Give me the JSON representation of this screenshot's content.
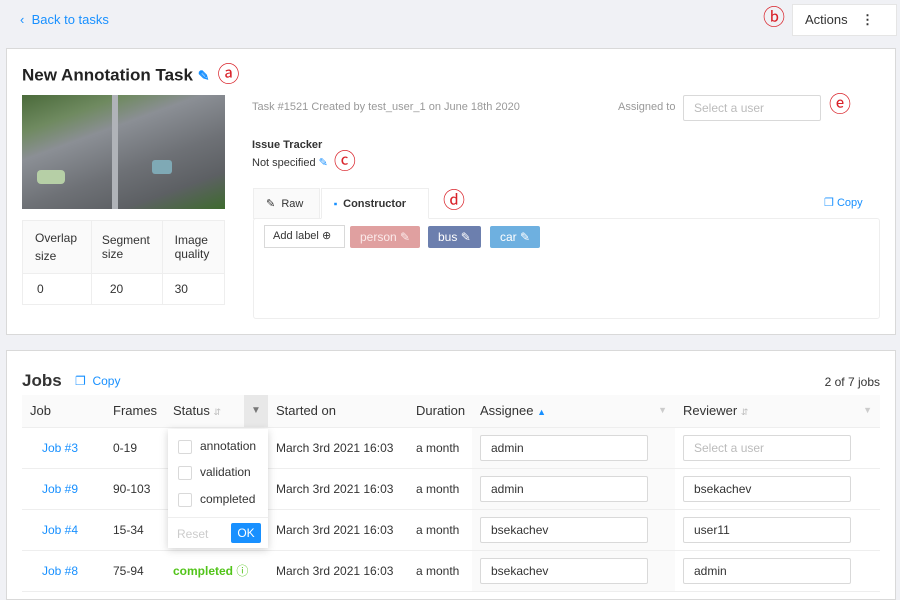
{
  "header": {
    "back_label": "Back to tasks",
    "actions_label": "Actions"
  },
  "markers": {
    "a": "ⓐ",
    "b": "ⓑ",
    "c": "ⓒ",
    "d": "ⓓ",
    "e": "ⓔ"
  },
  "task": {
    "title": "New Annotation Task",
    "meta": "Task #1521 Created by test_user_1 on June 18th 2020",
    "assigned_label": "Assigned to",
    "assigned_placeholder": "Select a user",
    "issue_tracker_label": "Issue Tracker",
    "issue_tracker_value": "Not specified",
    "params": {
      "headers": [
        "Overlap size",
        "Segment size",
        "Image quality"
      ],
      "values": [
        "0",
        "20",
        "30"
      ]
    }
  },
  "labels": {
    "tabs": [
      "Raw",
      "Constructor"
    ],
    "active_tab": "Constructor",
    "copy_label": "Copy",
    "add_label": "Add label",
    "items": [
      {
        "name": "person",
        "color": "#e0a0a0"
      },
      {
        "name": "bus",
        "color": "#6c7fae"
      },
      {
        "name": "car",
        "color": "#6eb0e0"
      }
    ]
  },
  "jobs": {
    "title": "Jobs",
    "copy_label": "Copy",
    "count": "2 of 7 jobs",
    "columns": [
      "Job",
      "Frames",
      "Status",
      "Started on",
      "Duration",
      "Assignee",
      "Reviewer"
    ],
    "rows": [
      {
        "job": "Job #3",
        "frames": "0-19",
        "status": "",
        "started": "March 3rd 2021 16:03",
        "duration": "a month",
        "assignee": "admin",
        "reviewer": ""
      },
      {
        "job": "Job #9",
        "frames": "90-103",
        "status": "",
        "started": "March 3rd 2021 16:03",
        "duration": "a month",
        "assignee": "admin",
        "reviewer": "bsekachev"
      },
      {
        "job": "Job #4",
        "frames": "15-34",
        "status": "",
        "started": "March 3rd 2021 16:03",
        "duration": "a month",
        "assignee": "bsekachev",
        "reviewer": "user11"
      },
      {
        "job": "Job #8",
        "frames": "75-94",
        "status": "completed",
        "started": "March 3rd 2021 16:03",
        "duration": "a month",
        "assignee": "bsekachev",
        "reviewer": "admin"
      }
    ],
    "reviewer_placeholder": "Select a user",
    "status_filter": {
      "options": [
        "annotation",
        "validation",
        "completed"
      ],
      "reset_label": "Reset",
      "ok_label": "OK"
    }
  }
}
